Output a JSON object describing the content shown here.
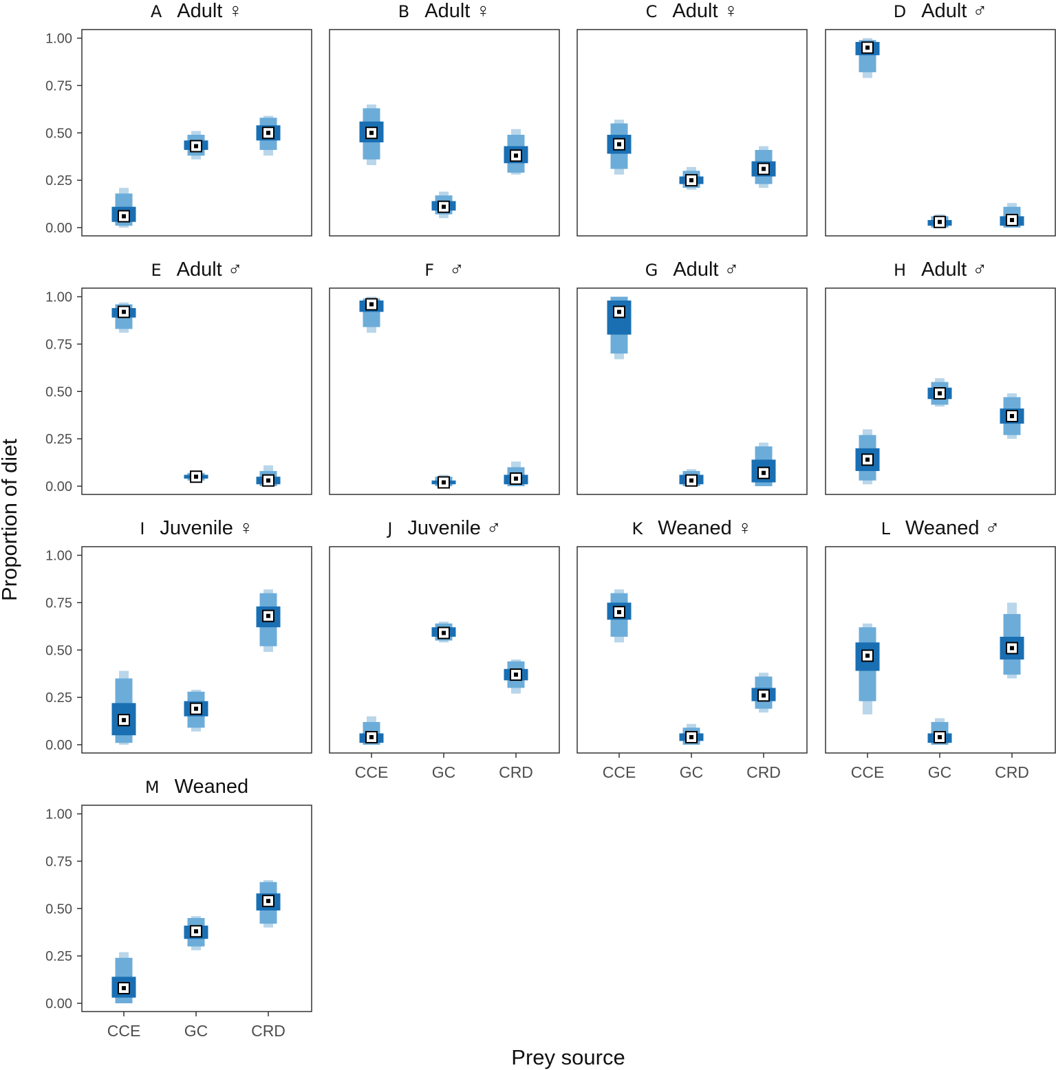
{
  "chart_data": {
    "type": "interval",
    "x_label": "Prey source",
    "y_label": "Proportion of diet",
    "categories": [
      "CCE",
      "GC",
      "CRD"
    ],
    "y_ticks": [
      "0.00",
      "0.25",
      "0.50",
      "0.75",
      "1.00"
    ],
    "ylim": [
      0,
      1
    ],
    "colors": {
      "outer": "#b9d6ea",
      "middle": "#6cacd9",
      "inner": "#1a6fb3",
      "marker_fill": "#ffffff",
      "marker_dot": "#000000"
    },
    "legend": "none",
    "panels": [
      {
        "letter": "A",
        "group": "Adult",
        "sex": "♀",
        "show_x": false,
        "sources": [
          {
            "name": "CCE",
            "median": 0.06,
            "ci50": [
              0.03,
              0.11
            ],
            "ci95": [
              0.01,
              0.18
            ],
            "ci99": [
              0.0,
              0.21
            ]
          },
          {
            "name": "GC",
            "median": 0.43,
            "ci50": [
              0.41,
              0.46
            ],
            "ci95": [
              0.38,
              0.49
            ],
            "ci99": [
              0.36,
              0.51
            ]
          },
          {
            "name": "CRD",
            "median": 0.5,
            "ci50": [
              0.46,
              0.54
            ],
            "ci95": [
              0.41,
              0.58
            ],
            "ci99": [
              0.38,
              0.59
            ]
          }
        ]
      },
      {
        "letter": "B",
        "group": "Adult",
        "sex": "♀",
        "show_x": false,
        "sources": [
          {
            "name": "CCE",
            "median": 0.5,
            "ci50": [
              0.45,
              0.56
            ],
            "ci95": [
              0.36,
              0.63
            ],
            "ci99": [
              0.33,
              0.65
            ]
          },
          {
            "name": "GC",
            "median": 0.11,
            "ci50": [
              0.09,
              0.14
            ],
            "ci95": [
              0.07,
              0.17
            ],
            "ci99": [
              0.05,
              0.19
            ]
          },
          {
            "name": "CRD",
            "median": 0.38,
            "ci50": [
              0.34,
              0.43
            ],
            "ci95": [
              0.29,
              0.49
            ],
            "ci99": [
              0.28,
              0.52
            ]
          }
        ]
      },
      {
        "letter": "C",
        "group": "Adult",
        "sex": "♀",
        "show_x": false,
        "sources": [
          {
            "name": "CCE",
            "median": 0.44,
            "ci50": [
              0.39,
              0.49
            ],
            "ci95": [
              0.31,
              0.55
            ],
            "ci99": [
              0.28,
              0.57
            ]
          },
          {
            "name": "GC",
            "median": 0.25,
            "ci50": [
              0.23,
              0.27
            ],
            "ci95": [
              0.21,
              0.3
            ],
            "ci99": [
              0.2,
              0.32
            ]
          },
          {
            "name": "CRD",
            "median": 0.31,
            "ci50": [
              0.27,
              0.35
            ],
            "ci95": [
              0.23,
              0.41
            ],
            "ci99": [
              0.21,
              0.43
            ]
          }
        ]
      },
      {
        "letter": "D",
        "group": "Adult",
        "sex": "♂",
        "show_x": false,
        "sources": [
          {
            "name": "CCE",
            "median": 0.95,
            "ci50": [
              0.91,
              0.98
            ],
            "ci95": [
              0.82,
              0.99
            ],
            "ci99": [
              0.79,
              1.0
            ]
          },
          {
            "name": "GC",
            "median": 0.03,
            "ci50": [
              0.01,
              0.04
            ],
            "ci95": [
              0.0,
              0.06
            ],
            "ci99": [
              0.0,
              0.07
            ]
          },
          {
            "name": "CRD",
            "median": 0.04,
            "ci50": [
              0.01,
              0.06
            ],
            "ci95": [
              0.0,
              0.11
            ],
            "ci99": [
              0.0,
              0.13
            ]
          }
        ]
      },
      {
        "letter": "E",
        "group": "Adult",
        "sex": "♂",
        "show_x": false,
        "sources": [
          {
            "name": "CCE",
            "median": 0.92,
            "ci50": [
              0.89,
              0.94
            ],
            "ci95": [
              0.83,
              0.96
            ],
            "ci99": [
              0.81,
              0.97
            ]
          },
          {
            "name": "GC",
            "median": 0.05,
            "ci50": [
              0.04,
              0.06
            ],
            "ci95": [
              0.03,
              0.07
            ],
            "ci99": [
              0.02,
              0.08
            ]
          },
          {
            "name": "CRD",
            "median": 0.03,
            "ci50": [
              0.01,
              0.05
            ],
            "ci95": [
              0.0,
              0.08
            ],
            "ci99": [
              0.0,
              0.11
            ]
          }
        ]
      },
      {
        "letter": "F",
        "group": "",
        "sex": "♂",
        "show_x": false,
        "sources": [
          {
            "name": "CCE",
            "median": 0.96,
            "ci50": [
              0.92,
              0.98
            ],
            "ci95": [
              0.84,
              0.99
            ],
            "ci99": [
              0.81,
              1.0
            ]
          },
          {
            "name": "GC",
            "median": 0.02,
            "ci50": [
              0.01,
              0.03
            ],
            "ci95": [
              0.0,
              0.05
            ],
            "ci99": [
              0.0,
              0.06
            ]
          },
          {
            "name": "CRD",
            "median": 0.04,
            "ci50": [
              0.01,
              0.06
            ],
            "ci95": [
              0.0,
              0.1
            ],
            "ci99": [
              0.0,
              0.13
            ]
          }
        ]
      },
      {
        "letter": "G",
        "group": "Adult",
        "sex": "♂",
        "show_x": false,
        "sources": [
          {
            "name": "CCE",
            "median": 0.92,
            "ci50": [
              0.8,
              0.98
            ],
            "ci95": [
              0.7,
              1.0
            ],
            "ci99": [
              0.67,
              1.0
            ]
          },
          {
            "name": "GC",
            "median": 0.03,
            "ci50": [
              0.01,
              0.06
            ],
            "ci95": [
              0.0,
              0.08
            ],
            "ci99": [
              0.0,
              0.09
            ]
          },
          {
            "name": "CRD",
            "median": 0.07,
            "ci50": [
              0.02,
              0.14
            ],
            "ci95": [
              0.0,
              0.21
            ],
            "ci99": [
              0.0,
              0.23
            ]
          }
        ]
      },
      {
        "letter": "H",
        "group": "Adult",
        "sex": "♂",
        "show_x": false,
        "sources": [
          {
            "name": "CCE",
            "median": 0.14,
            "ci50": [
              0.08,
              0.2
            ],
            "ci95": [
              0.03,
              0.27
            ],
            "ci99": [
              0.01,
              0.3
            ]
          },
          {
            "name": "GC",
            "median": 0.49,
            "ci50": [
              0.46,
              0.52
            ],
            "ci95": [
              0.43,
              0.55
            ],
            "ci99": [
              0.42,
              0.57
            ]
          },
          {
            "name": "CRD",
            "median": 0.37,
            "ci50": [
              0.33,
              0.41
            ],
            "ci95": [
              0.27,
              0.47
            ],
            "ci99": [
              0.25,
              0.49
            ]
          }
        ]
      },
      {
        "letter": "I",
        "group": "Juvenile",
        "sex": "♀",
        "show_x": false,
        "sources": [
          {
            "name": "CCE",
            "median": 0.13,
            "ci50": [
              0.05,
              0.22
            ],
            "ci95": [
              0.01,
              0.35
            ],
            "ci99": [
              0.0,
              0.39
            ]
          },
          {
            "name": "GC",
            "median": 0.19,
            "ci50": [
              0.15,
              0.23
            ],
            "ci95": [
              0.09,
              0.28
            ],
            "ci99": [
              0.07,
              0.29
            ]
          },
          {
            "name": "CRD",
            "median": 0.68,
            "ci50": [
              0.62,
              0.73
            ],
            "ci95": [
              0.52,
              0.8
            ],
            "ci99": [
              0.49,
              0.82
            ]
          }
        ]
      },
      {
        "letter": "J",
        "group": "Juvenile",
        "sex": "♂",
        "show_x": true,
        "sources": [
          {
            "name": "CCE",
            "median": 0.04,
            "ci50": [
              0.01,
              0.06
            ],
            "ci95": [
              0.0,
              0.12
            ],
            "ci99": [
              0.0,
              0.15
            ]
          },
          {
            "name": "GC",
            "median": 0.59,
            "ci50": [
              0.57,
              0.62
            ],
            "ci95": [
              0.55,
              0.64
            ],
            "ci99": [
              0.54,
              0.65
            ]
          },
          {
            "name": "CRD",
            "median": 0.37,
            "ci50": [
              0.34,
              0.4
            ],
            "ci95": [
              0.3,
              0.44
            ],
            "ci99": [
              0.27,
              0.45
            ]
          }
        ]
      },
      {
        "letter": "K",
        "group": "Weaned",
        "sex": "♀",
        "show_x": true,
        "sources": [
          {
            "name": "CCE",
            "median": 0.7,
            "ci50": [
              0.66,
              0.75
            ],
            "ci95": [
              0.57,
              0.8
            ],
            "ci99": [
              0.54,
              0.82
            ]
          },
          {
            "name": "GC",
            "median": 0.04,
            "ci50": [
              0.02,
              0.06
            ],
            "ci95": [
              0.0,
              0.09
            ],
            "ci99": [
              0.0,
              0.11
            ]
          },
          {
            "name": "CRD",
            "median": 0.26,
            "ci50": [
              0.23,
              0.3
            ],
            "ci95": [
              0.19,
              0.36
            ],
            "ci99": [
              0.17,
              0.38
            ]
          }
        ]
      },
      {
        "letter": "L",
        "group": "Weaned",
        "sex": "♂",
        "show_x": true,
        "sources": [
          {
            "name": "CCE",
            "median": 0.47,
            "ci50": [
              0.39,
              0.54
            ],
            "ci95": [
              0.23,
              0.62
            ],
            "ci99": [
              0.16,
              0.64
            ]
          },
          {
            "name": "GC",
            "median": 0.04,
            "ci50": [
              0.01,
              0.06
            ],
            "ci95": [
              0.0,
              0.12
            ],
            "ci99": [
              0.0,
              0.14
            ]
          },
          {
            "name": "CRD",
            "median": 0.51,
            "ci50": [
              0.45,
              0.57
            ],
            "ci95": [
              0.37,
              0.69
            ],
            "ci99": [
              0.35,
              0.75
            ]
          }
        ]
      },
      {
        "letter": "M",
        "group": "Weaned",
        "sex": "",
        "show_x": true,
        "sources": [
          {
            "name": "CCE",
            "median": 0.08,
            "ci50": [
              0.03,
              0.14
            ],
            "ci95": [
              0.0,
              0.24
            ],
            "ci99": [
              0.0,
              0.27
            ]
          },
          {
            "name": "GC",
            "median": 0.38,
            "ci50": [
              0.34,
              0.41
            ],
            "ci95": [
              0.3,
              0.45
            ],
            "ci99": [
              0.28,
              0.46
            ]
          },
          {
            "name": "CRD",
            "median": 0.54,
            "ci50": [
              0.49,
              0.58
            ],
            "ci95": [
              0.42,
              0.64
            ],
            "ci99": [
              0.4,
              0.65
            ]
          }
        ]
      }
    ]
  }
}
